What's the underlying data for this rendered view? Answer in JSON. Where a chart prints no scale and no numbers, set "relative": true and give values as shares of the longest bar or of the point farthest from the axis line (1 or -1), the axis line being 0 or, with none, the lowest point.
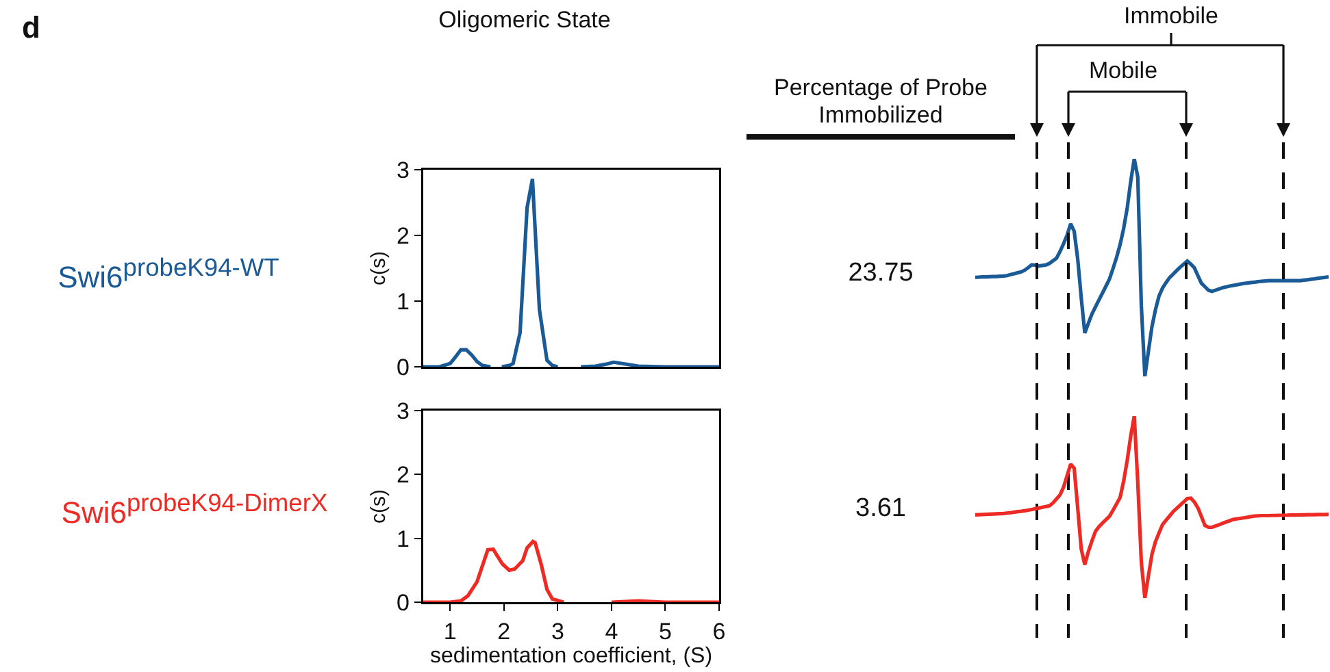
{
  "chart_data": [
    {
      "type": "line",
      "title": "Oligomeric State",
      "ylabel": "c(s)",
      "annotations": [
        "d",
        "Swi6$^{probeK94-WT}$"
      ],
      "x": [
        0.5,
        0.8,
        1.0,
        1.1,
        1.2,
        1.3,
        1.4,
        1.5,
        1.6,
        1.75,
        1.85,
        1.96,
        2.1,
        2.17,
        2.3,
        2.43,
        2.53,
        2.66,
        2.8,
        2.9,
        3.0,
        3.2,
        3.43,
        3.7,
        3.9,
        4.04,
        4.2,
        4.5,
        5.0,
        5.5,
        6.0
      ],
      "series": [
        {
          "color": "#1a5a96",
          "values": [
            0,
            0,
            0.05,
            0.15,
            0.26,
            0.26,
            0.18,
            0.08,
            0.02,
            0,
            null,
            0,
            0.02,
            0.05,
            0.52,
            2.42,
            2.86,
            0.87,
            0.1,
            0.02,
            0,
            null,
            0,
            0.01,
            0.04,
            0.07,
            0.05,
            0.01,
            0,
            0,
            0
          ]
        }
      ],
      "xlim": [
        0.5,
        6
      ],
      "xticks": [
        1,
        2,
        3,
        4,
        5,
        6
      ],
      "ylim": [
        0,
        3
      ],
      "yticks": [
        0,
        1,
        2,
        3
      ],
      "tick_labels": "y",
      "grid": false
    },
    {
      "type": "line",
      "title": "Percentage of Probe Immobilized",
      "annotations": [
        "23.75",
        "Immobile",
        "Mobile"
      ],
      "relative": true,
      "categories": [
        null,
        null,
        null,
        null,
        null,
        null,
        null,
        null,
        null,
        null,
        null,
        null,
        null,
        null,
        null,
        null,
        null,
        null,
        null,
        null,
        null,
        null,
        null,
        null,
        null,
        null,
        null,
        null,
        null,
        null,
        null,
        null,
        null,
        null,
        null,
        null,
        null,
        null,
        null,
        null,
        null,
        null,
        null,
        null,
        null,
        null,
        null,
        null,
        null,
        null,
        null,
        null,
        null,
        null,
        null,
        null,
        null,
        null,
        null,
        null,
        null,
        null,
        null,
        null,
        null,
        null,
        null,
        null,
        null,
        null,
        null,
        null,
        null,
        null,
        null,
        null,
        null,
        null,
        null,
        null,
        null,
        null,
        null,
        null,
        null,
        null,
        null,
        null,
        null,
        null,
        null,
        null,
        null,
        null,
        null,
        null,
        null,
        null,
        null,
        null,
        null
      ],
      "series": [
        {
          "color": "#1a5a96",
          "values": [
            0.455,
            0.456,
            0.457,
            0.457,
            0.458,
            0.459,
            0.459,
            0.46,
            0.461,
            0.463,
            0.468,
            0.472,
            0.476,
            0.48,
            0.488,
            0.5,
            0.513,
            0.511,
            0.507,
            0.51,
            0.512,
            0.519,
            0.531,
            0.543,
            0.574,
            0.61,
            0.649,
            0.701,
            0.667,
            0.539,
            0.361,
            0.199,
            0.243,
            0.286,
            0.319,
            0.351,
            0.383,
            0.415,
            0.448,
            0.496,
            0.547,
            0.606,
            0.68,
            0.773,
            0.896,
            1,
            0.915,
            0.325,
            0,
            0.115,
            0.228,
            0.306,
            0.369,
            0.406,
            0.431,
            0.454,
            0.47,
            0.486,
            0.502,
            0.516,
            0.53,
            0.516,
            0.499,
            0.463,
            0.428,
            0.412,
            0.396,
            0.391,
            0.396,
            0.402,
            0.407,
            0.411,
            0.415,
            0.418,
            0.421,
            0.424,
            0.427,
            0.429,
            0.431,
            0.433,
            0.435,
            0.437,
            0.438,
            0.44,
            0.44,
            0.44,
            0.44,
            0.44,
            0.44,
            0.44,
            0.44,
            0.44,
            0.44,
            0.442,
            0.444,
            0.446,
            0.448,
            0.451,
            0.453,
            0.455,
            0.457
          ]
        }
      ],
      "tick_labels": false
    },
    {
      "type": "line",
      "ylabel": "c(s)",
      "xlabel": "sedimentation coefficient, (S)",
      "annotations": [
        "Swi6$^{probeK94-DimerX}$"
      ],
      "x": [
        0.5,
        1.0,
        1.2,
        1.33,
        1.5,
        1.7,
        1.8,
        1.97,
        2.1,
        2.2,
        2.35,
        2.43,
        2.54,
        2.58,
        2.69,
        2.8,
        2.9,
        3.11,
        3.5,
        4.0,
        4.5,
        5.0,
        6.0
      ],
      "series": [
        {
          "color": "#ee2a24",
          "values": [
            0,
            0,
            0.02,
            0.1,
            0.32,
            0.82,
            0.83,
            0.6,
            0.5,
            0.52,
            0.65,
            0.85,
            0.95,
            0.93,
            0.6,
            0.2,
            0.05,
            0,
            null,
            0,
            0.02,
            0,
            0
          ]
        }
      ],
      "xlim": [
        0.5,
        6
      ],
      "xticks": [
        1,
        2,
        3,
        4,
        5,
        6
      ],
      "ylim": [
        0,
        3
      ],
      "yticks": [
        0,
        1,
        2,
        3
      ],
      "grid": false
    },
    {
      "type": "line",
      "annotations": [
        "3.61"
      ],
      "relative": true,
      "categories": [
        null,
        null,
        null,
        null,
        null,
        null,
        null,
        null,
        null,
        null,
        null,
        null,
        null,
        null,
        null,
        null,
        null,
        null,
        null,
        null,
        null,
        null,
        null,
        null,
        null,
        null,
        null,
        null,
        null,
        null,
        null,
        null,
        null,
        null,
        null,
        null,
        null,
        null,
        null,
        null,
        null,
        null,
        null,
        null,
        null,
        null,
        null,
        null,
        null,
        null,
        null,
        null,
        null,
        null,
        null,
        null,
        null,
        null,
        null,
        null,
        null,
        null,
        null,
        null,
        null,
        null,
        null,
        null,
        null,
        null,
        null,
        null,
        null,
        null,
        null,
        null,
        null,
        null,
        null,
        null,
        null,
        null,
        null,
        null,
        null,
        null,
        null,
        null,
        null,
        null,
        null,
        null,
        null,
        null,
        null,
        null,
        null,
        null,
        null,
        null,
        null
      ],
      "series": [
        {
          "color": "#ee2a24",
          "values": [
            0.457,
            0.458,
            0.459,
            0.46,
            0.461,
            0.462,
            0.463,
            0.464,
            0.465,
            0.467,
            0.469,
            0.472,
            0.475,
            0.477,
            0.48,
            0.483,
            0.487,
            0.491,
            0.495,
            0.499,
            0.503,
            0.507,
            0.523,
            0.545,
            0.567,
            0.61,
            0.673,
            0.736,
            0.713,
            0.494,
            0.269,
            0.184,
            0.255,
            0.313,
            0.366,
            0.392,
            0.412,
            0.431,
            0.45,
            0.483,
            0.518,
            0.553,
            0.643,
            0.756,
            0.89,
            1,
            0.634,
            0.196,
            0,
            0.122,
            0.24,
            0.31,
            0.358,
            0.404,
            0.428,
            0.451,
            0.475,
            0.493,
            0.511,
            0.529,
            0.547,
            0.549,
            0.528,
            0.496,
            0.448,
            0.399,
            0.389,
            0.389,
            0.396,
            0.403,
            0.411,
            0.418,
            0.425,
            0.432,
            0.435,
            0.438,
            0.441,
            0.444,
            0.448,
            0.451,
            0.452,
            0.453,
            0.453,
            0.453,
            0.454,
            0.454,
            0.455,
            0.455,
            0.455,
            0.456,
            0.456,
            0.456,
            0.457,
            0.457,
            0.458,
            0.458,
            0.458,
            0.459,
            0.459,
            0.459,
            0.46
          ]
        }
      ],
      "tick_labels": false
    }
  ]
}
